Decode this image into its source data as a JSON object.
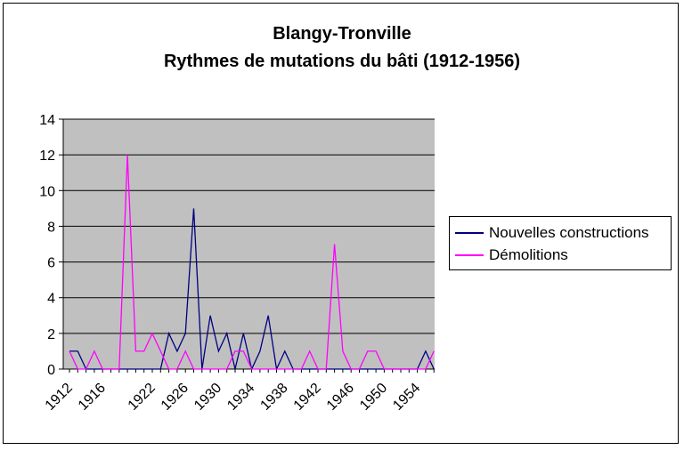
{
  "chart_data": {
    "type": "line",
    "title": "Blangy-Tronville",
    "subtitle": "Rythmes de mutations du bâti (1912-1956)",
    "xlabel": "",
    "ylabel": "",
    "ylim": [
      0,
      14
    ],
    "yticks": [
      0,
      2,
      4,
      6,
      8,
      10,
      12,
      14
    ],
    "x": [
      1912,
      1913,
      1914,
      1915,
      1916,
      1917,
      1918,
      1919,
      1920,
      1921,
      1922,
      1923,
      1924,
      1925,
      1926,
      1927,
      1928,
      1929,
      1930,
      1931,
      1932,
      1933,
      1934,
      1935,
      1936,
      1937,
      1938,
      1939,
      1940,
      1941,
      1942,
      1943,
      1944,
      1945,
      1946,
      1947,
      1948,
      1949,
      1950,
      1951,
      1952,
      1953,
      1954,
      1955,
      1956
    ],
    "xtick_labels": [
      "1912",
      "1916",
      "1922",
      "1926",
      "1930",
      "1934",
      "1938",
      "1942",
      "1946",
      "1950",
      "1954"
    ],
    "xtick_years": [
      1912,
      1916,
      1922,
      1926,
      1930,
      1934,
      1938,
      1942,
      1946,
      1950,
      1954
    ],
    "grid": true,
    "legend_position": "right",
    "plot_background": "#c0c0c0",
    "series": [
      {
        "name": "Nouvelles constructions",
        "color": "#000080",
        "values": [
          1,
          1,
          0,
          0,
          0,
          0,
          0,
          0,
          0,
          0,
          0,
          0,
          2,
          1,
          2,
          9,
          0,
          3,
          1,
          2,
          0,
          2,
          0,
          1,
          3,
          0,
          1,
          0,
          0,
          0,
          0,
          0,
          0,
          0,
          0,
          0,
          0,
          0,
          0,
          0,
          0,
          0,
          0,
          1,
          0
        ]
      },
      {
        "name": "Démolitions",
        "color": "#ff00ff",
        "values": [
          1,
          0,
          0,
          1,
          0,
          0,
          0,
          12,
          1,
          1,
          2,
          1,
          0,
          0,
          1,
          0,
          0,
          0,
          0,
          0,
          1,
          1,
          0,
          0,
          0,
          0,
          0,
          0,
          0,
          1,
          0,
          0,
          7,
          1,
          0,
          0,
          1,
          1,
          0,
          0,
          0,
          0,
          0,
          0,
          1
        ]
      }
    ]
  }
}
